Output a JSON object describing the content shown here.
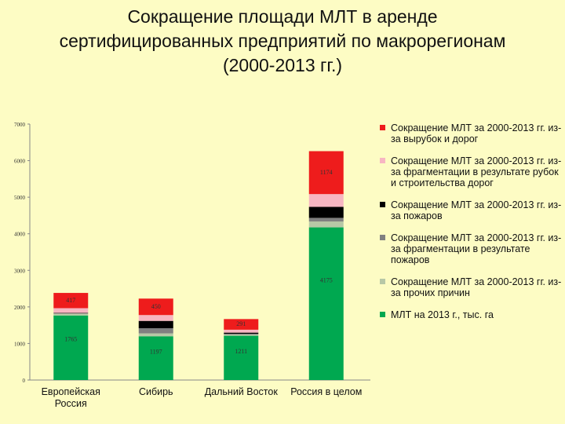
{
  "title": "Сокращение площади МЛТ в аренде сертифицированных предприятий по макрорегионам (2000-2013 гг.)",
  "chart_data": {
    "type": "bar",
    "stacked": true,
    "categories": [
      "Европейская Россия",
      "Сибирь",
      "Дальний Восток",
      "Россия в целом"
    ],
    "ylim": [
      0,
      7000
    ],
    "yticks": [
      "0",
      "1000",
      "2000",
      "3000",
      "4000",
      "5000",
      "6000",
      "7000"
    ],
    "grid": false,
    "legend_position": "right",
    "series": [
      {
        "name": "МЛТ на 2013 г., тыс. га",
        "color": "#00a850",
        "values": [
          1765,
          1197,
          1211,
          4175
        ],
        "labels": [
          "1765",
          "1197",
          "1211",
          "4175"
        ]
      },
      {
        "name": "Сокращение МЛТ за 2000-2013 гг. из-за прочих причин",
        "color": "#b7c8a6",
        "values": [
          50,
          80,
          30,
          160
        ],
        "labels": [
          "",
          "",
          "",
          ""
        ]
      },
      {
        "name": "Сокращение МЛТ за 2000-2013 гг. из-за фрагментации в результате пожаров",
        "color": "#808080",
        "values": [
          10,
          140,
          25,
          100
        ],
        "labels": [
          "",
          "",
          "",
          ""
        ]
      },
      {
        "name": "Сокращение МЛТ за 2000-2013 гг. из-за пожаров",
        "color": "#000000",
        "values": [
          10,
          200,
          30,
          300
        ],
        "labels": [
          "",
          "",
          "",
          ""
        ]
      },
      {
        "name": "Сокращение МЛТ за 2000-2013 гг. из-за фрагментации в результате рубок и строительства дорог",
        "color": "#f7b6c2",
        "values": [
          130,
          160,
          80,
          350
        ],
        "labels": [
          "",
          "",
          "",
          ""
        ]
      },
      {
        "name": "Сокращение МЛТ за 2000-2013 гг. из-за вырубок и дорог",
        "color": "#ee1c1c",
        "values": [
          417,
          450,
          291,
          1174
        ],
        "labels": [
          "417",
          "450",
          "291",
          "1174"
        ]
      }
    ]
  }
}
